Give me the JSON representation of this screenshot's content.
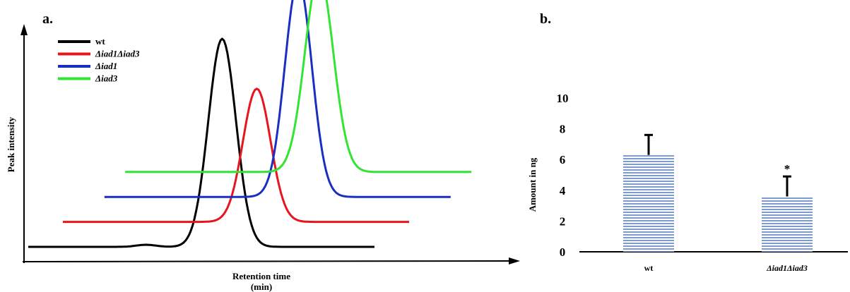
{
  "chart_data": [
    {
      "type": "line",
      "panel_label": "a.",
      "xlabel": "Retention time (min)",
      "xlabel_lines": [
        "Retention time",
        "(min)"
      ],
      "ylabel": "Peak intensity",
      "grid": false,
      "legend_position": "top-left",
      "series": [
        {
          "name": "wt",
          "color": "#000000",
          "x_start": 0,
          "x_end": 50,
          "baseline": 0,
          "peak_x": 28,
          "peak_height": 100,
          "peak_width": 2.0
        },
        {
          "name": "Δiad1Δiad3",
          "color": "#e8141e",
          "x_start": 5,
          "x_end": 55,
          "baseline": 12,
          "peak_x": 33,
          "peak_height": 64,
          "peak_width": 2.0
        },
        {
          "name": "Δiad1",
          "color": "#1a2fbf",
          "x_start": 11,
          "x_end": 61,
          "baseline": 24,
          "peak_x": 39,
          "peak_height": 104,
          "peak_width": 1.95
        },
        {
          "name": "Δiad3",
          "color": "#33e433",
          "x_start": 14,
          "x_end": 64,
          "baseline": 36,
          "peak_x": 42,
          "peak_height": 95,
          "peak_width": 2.05
        }
      ]
    },
    {
      "type": "bar",
      "panel_label": "b.",
      "ylabel": "Amount in ng",
      "ylim": [
        0,
        10
      ],
      "yticks": [
        "0",
        "2",
        "4",
        "6",
        "8",
        "10"
      ],
      "categories": [
        "wt",
        "Δiad1Δiad3"
      ],
      "values": [
        6.3,
        3.6
      ],
      "errors": [
        1.3,
        1.3
      ],
      "annotations": [
        "",
        "*"
      ],
      "bar_color": "#7e9bd0",
      "grid": false
    }
  ]
}
